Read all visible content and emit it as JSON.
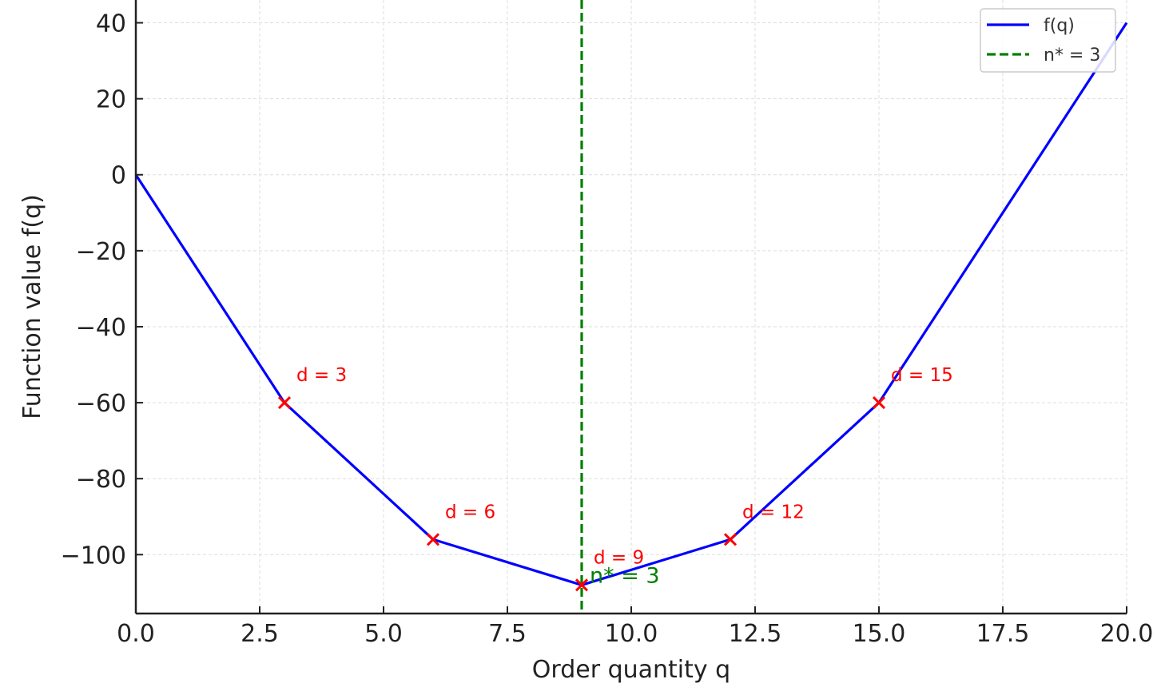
{
  "chart_data": {
    "type": "line",
    "xlabel": "Order quantity q",
    "ylabel": "Function value f(q)",
    "xlim": [
      0,
      20
    ],
    "ylim": [
      -115.5,
      46
    ],
    "x_ticks": [
      0,
      2.5,
      5,
      7.5,
      10,
      12.5,
      15,
      17.5,
      20
    ],
    "x_tick_labels": [
      "0.0",
      "2.5",
      "5.0",
      "7.5",
      "10.0",
      "12.5",
      "15.0",
      "17.5",
      "20.0"
    ],
    "y_ticks": [
      40,
      20,
      0,
      -20,
      -40,
      -60,
      -80,
      -100
    ],
    "y_tick_labels": [
      "40",
      "20",
      "0",
      "−20",
      "−40",
      "−60",
      "−80",
      "−100"
    ],
    "grid": true,
    "legend_position": "top-right",
    "series": [
      {
        "name": "f(q)",
        "color": "#0000ff",
        "x": [
          0,
          3,
          6,
          9,
          12,
          15,
          20
        ],
        "y": [
          0,
          -60,
          -96,
          -108,
          -96,
          -60,
          40
        ]
      }
    ],
    "markers": {
      "color": "#ff0000",
      "x": [
        3,
        6,
        9,
        12,
        15
      ],
      "y": [
        -60,
        -96,
        -108,
        -96,
        -60
      ],
      "labels": [
        "d = 3",
        "d = 6",
        "d = 9",
        "d = 12",
        "d = 15"
      ]
    },
    "vline": {
      "x": 9,
      "color": "#008000",
      "legend": "n* = 3",
      "text": "n* = 3"
    }
  }
}
